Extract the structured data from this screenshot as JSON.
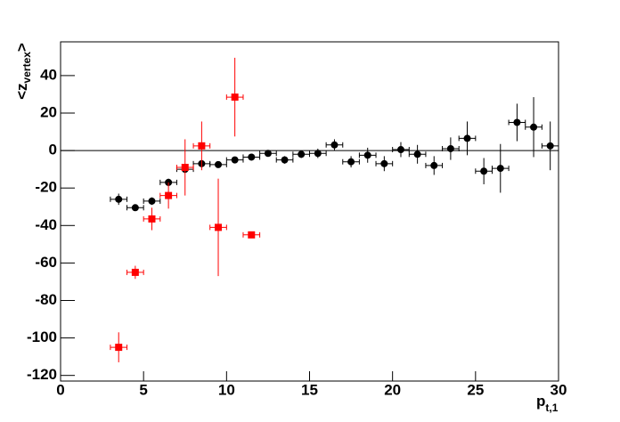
{
  "chart_data": {
    "type": "scatter",
    "y_label": [
      "<z",
      "vertex",
      ">"
    ],
    "x_label": [
      "p",
      "t,1"
    ],
    "xlim": [
      0,
      30
    ],
    "ylim": [
      -123,
      58
    ],
    "xticks": [
      0,
      5,
      10,
      15,
      20,
      25,
      30
    ],
    "yticks": [
      -120,
      -100,
      -80,
      -60,
      -40,
      -20,
      0,
      20,
      40
    ],
    "hline": 0,
    "series": [
      {
        "color": "#000000",
        "marker": "circle",
        "x": [
          3.5,
          4.5,
          5.5,
          6.5,
          7.5,
          8.5,
          9.5,
          10.5,
          11.5,
          12.5,
          13.5,
          14.5,
          15.5,
          16.5,
          17.5,
          18.5,
          19.5,
          20.5,
          21.5,
          22.5,
          23.5,
          24.5,
          25.5,
          26.5,
          27.5,
          28.5,
          29.5
        ],
        "values": [
          -26,
          -30.5,
          -27,
          -17,
          -10,
          -7,
          -7.5,
          -5,
          -3.5,
          -1.5,
          -5,
          -2,
          -1.5,
          3,
          -6,
          -2.5,
          -7,
          0.5,
          -2,
          -8,
          1,
          6.5,
          -11,
          -9.5,
          15,
          12.5,
          2.5
        ],
        "errors": [
          3,
          1,
          2,
          2,
          2,
          2,
          1.5,
          1,
          1,
          1,
          2,
          2,
          2.5,
          3,
          3,
          4,
          4,
          4,
          5,
          5,
          6,
          9,
          7,
          13,
          10,
          16,
          13
        ],
        "xerrors": [
          0.5,
          0.5,
          0.5,
          0.5,
          0.5,
          0.5,
          0.5,
          0.5,
          0.5,
          0.5,
          0.5,
          0.5,
          0.5,
          0.5,
          0.5,
          0.5,
          0.5,
          0.5,
          0.5,
          0.5,
          0.5,
          0.5,
          0.5,
          0.5,
          0.5,
          0.5,
          0.5
        ]
      },
      {
        "color": "#ff0000",
        "marker": "square",
        "x": [
          3.5,
          4.5,
          5.5,
          6.5,
          7.5,
          8.5,
          9.5,
          10.5,
          11.5
        ],
        "values": [
          -105,
          -65,
          -36.5,
          -24,
          -9,
          2.5,
          -41,
          28.5,
          -45
        ],
        "errors": [
          8,
          3.5,
          6,
          7,
          15,
          13,
          26,
          21,
          1
        ],
        "xerrors": [
          0.5,
          0.5,
          0.5,
          0.5,
          0.5,
          0.5,
          0.5,
          0.5,
          0.5
        ]
      }
    ]
  }
}
